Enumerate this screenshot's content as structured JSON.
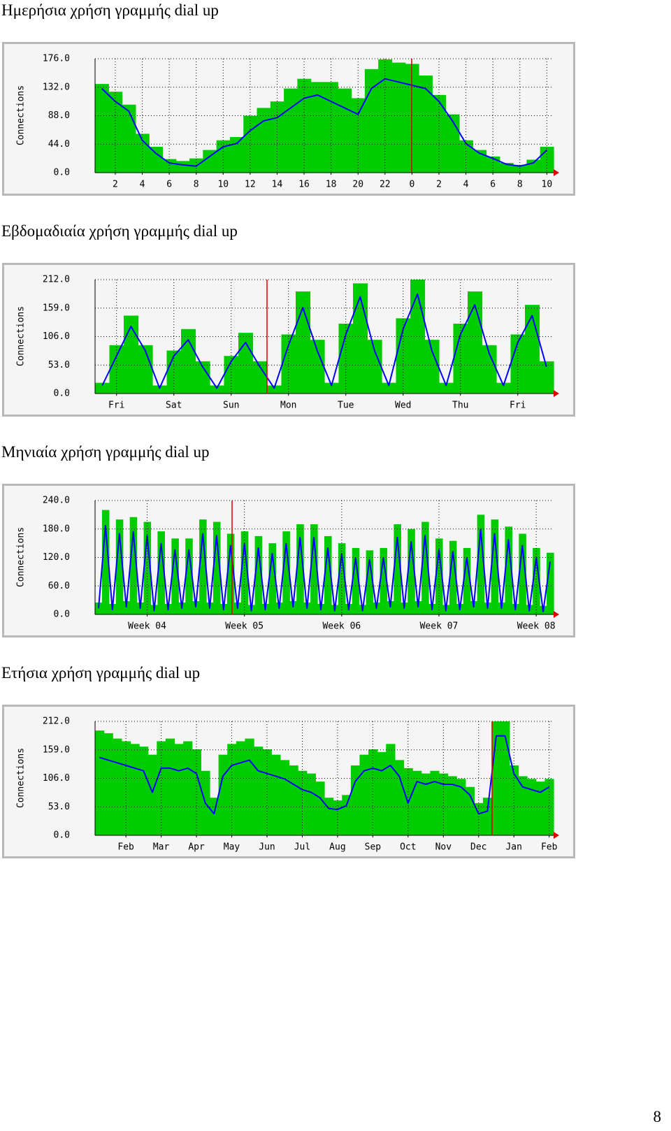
{
  "page_number": "8",
  "chart_data": [
    {
      "type": "area",
      "title": "Ημερήσια χρήση γραμμής dial up",
      "y_label": "Connections",
      "grid": true,
      "categories": [
        null,
        "2",
        null,
        "4",
        null,
        "6",
        null,
        "8",
        null,
        "10",
        null,
        "12",
        null,
        "14",
        null,
        "16",
        null,
        "18",
        null,
        "20",
        null,
        "22",
        null,
        "0",
        null,
        "2",
        null,
        "4",
        null,
        "6",
        null,
        "8",
        null,
        "10"
      ],
      "ylim": [
        0,
        176
      ],
      "yticks": [
        {
          "value": 0,
          "label": "0.0"
        },
        {
          "value": 44,
          "label": "44.0"
        },
        {
          "value": 88,
          "label": "88.0"
        },
        {
          "value": 132,
          "label": "132.0"
        },
        {
          "value": 176,
          "label": "176.0"
        }
      ],
      "series": [
        {
          "type": "bar",
          "color": "#00cc00",
          "values": [
            137,
            125,
            105,
            60,
            40,
            21,
            18,
            22,
            35,
            50,
            55,
            88,
            100,
            110,
            130,
            145,
            140,
            140,
            130,
            115,
            160,
            175,
            170,
            168,
            150,
            120,
            90,
            50,
            35,
            25,
            15,
            12,
            20,
            40
          ]
        },
        {
          "type": "line",
          "color": "#0000ff",
          "values": [
            130,
            110,
            95,
            50,
            30,
            15,
            12,
            10,
            25,
            40,
            45,
            65,
            80,
            85,
            100,
            115,
            120,
            110,
            100,
            90,
            130,
            145,
            140,
            135,
            130,
            110,
            80,
            45,
            30,
            22,
            13,
            10,
            15,
            35
          ]
        }
      ]
    },
    {
      "type": "area",
      "title": "Εβδομαδιαία χρήση γραμμής dial up",
      "y_label": "Connections",
      "grid": true,
      "categories": [
        null,
        "Fri",
        null,
        null,
        null,
        "Sat",
        null,
        null,
        null,
        "Sun",
        null,
        null,
        null,
        "Mon",
        null,
        null,
        null,
        "Tue",
        null,
        null,
        null,
        "Wed",
        null,
        null,
        null,
        "Thu",
        null,
        null,
        null,
        "Fri",
        null,
        null
      ],
      "ylim": [
        0,
        212
      ],
      "yticks": [
        {
          "value": 0,
          "label": "0.0"
        },
        {
          "value": 53,
          "label": "53.0"
        },
        {
          "value": 106,
          "label": "106.0"
        },
        {
          "value": 159,
          "label": "159.0"
        },
        {
          "value": 212,
          "label": "212.0"
        }
      ],
      "series": [
        {
          "type": "bar",
          "color": "#00cc00",
          "values": [
            20,
            90,
            145,
            90,
            15,
            80,
            120,
            60,
            15,
            70,
            113,
            60,
            15,
            110,
            190,
            100,
            20,
            130,
            205,
            100,
            20,
            140,
            212,
            100,
            20,
            130,
            190,
            90,
            20,
            110,
            165,
            60
          ]
        },
        {
          "type": "line",
          "color": "#0000ff",
          "values": [
            15,
            70,
            125,
            80,
            10,
            70,
            100,
            50,
            10,
            60,
            95,
            50,
            10,
            90,
            160,
            80,
            15,
            110,
            180,
            80,
            15,
            120,
            185,
            80,
            15,
            110,
            165,
            75,
            15,
            95,
            145,
            50
          ]
        }
      ]
    },
    {
      "type": "area",
      "title": "Μηνιαία χρήση γραμμής dial up",
      "y_label": "Connections",
      "grid": true,
      "categories": [
        null,
        null,
        null,
        null,
        null,
        null,
        null,
        "Week 04",
        null,
        null,
        null,
        null,
        null,
        null,
        null,
        null,
        null,
        null,
        null,
        null,
        null,
        "Week 05",
        null,
        null,
        null,
        null,
        null,
        null,
        null,
        null,
        null,
        null,
        null,
        null,
        null,
        "Week 06",
        null,
        null,
        null,
        null,
        null,
        null,
        null,
        null,
        null,
        null,
        null,
        null,
        null,
        "Week 07",
        null,
        null,
        null,
        null,
        null,
        null,
        null,
        null,
        null,
        null,
        null,
        null,
        null,
        "Week 08",
        null,
        null
      ],
      "ylim": [
        0,
        240
      ],
      "yticks": [
        {
          "value": 0,
          "label": "0.0"
        },
        {
          "value": 60,
          "label": "60.0"
        },
        {
          "value": 120,
          "label": "120.0"
        },
        {
          "value": 180,
          "label": "180.0"
        },
        {
          "value": 240,
          "label": "240.0"
        }
      ],
      "series": [
        {
          "type": "bar",
          "color": "#00cc00",
          "values": [
            25,
            220,
            22,
            200,
            28,
            205,
            25,
            195,
            20,
            175,
            22,
            160,
            25,
            160,
            28,
            200,
            25,
            195,
            22,
            170,
            25,
            175,
            20,
            165,
            22,
            150,
            25,
            175,
            28,
            190,
            25,
            190,
            22,
            165,
            20,
            150,
            22,
            140,
            20,
            135,
            25,
            140,
            28,
            190,
            25,
            180,
            28,
            195,
            22,
            160,
            20,
            155,
            22,
            140,
            28,
            210,
            25,
            200,
            25,
            185,
            22,
            170,
            20,
            140,
            18,
            130
          ]
        },
        {
          "type": "line",
          "color": "#0000ff",
          "values": [
            13,
            187,
            10,
            170,
            16,
            174,
            13,
            166,
            8,
            149,
            10,
            136,
            13,
            136,
            16,
            170,
            13,
            166,
            10,
            145,
            13,
            149,
            8,
            140,
            10,
            128,
            13,
            149,
            16,
            162,
            13,
            162,
            10,
            140,
            8,
            128,
            10,
            119,
            8,
            115,
            13,
            119,
            16,
            162,
            13,
            153,
            16,
            166,
            10,
            136,
            8,
            132,
            10,
            119,
            16,
            179,
            13,
            170,
            13,
            157,
            10,
            145,
            8,
            119,
            6,
            111
          ]
        }
      ]
    },
    {
      "type": "area",
      "title": "Ετήσια χρήση γραμμής dial up",
      "y_label": "Connections",
      "grid": true,
      "categories": [
        null,
        null,
        null,
        "Feb",
        null,
        null,
        null,
        "Mar",
        null,
        null,
        null,
        "Apr",
        null,
        null,
        null,
        "May",
        null,
        null,
        null,
        "Jun",
        null,
        null,
        null,
        "Jul",
        null,
        null,
        null,
        "Aug",
        null,
        null,
        null,
        "Sep",
        null,
        null,
        null,
        "Oct",
        null,
        null,
        null,
        "Nov",
        null,
        null,
        null,
        "Dec",
        null,
        null,
        null,
        "Jan",
        null,
        null,
        null,
        "Feb"
      ],
      "ylim": [
        0,
        212
      ],
      "yticks": [
        {
          "value": 0,
          "label": "0.0"
        },
        {
          "value": 53,
          "label": "53.0"
        },
        {
          "value": 106,
          "label": "106.0"
        },
        {
          "value": 159,
          "label": "159.0"
        },
        {
          "value": 212,
          "label": "212.0"
        }
      ],
      "series": [
        {
          "type": "bar",
          "color": "#00cc00",
          "values": [
            195,
            190,
            180,
            175,
            170,
            165,
            150,
            175,
            180,
            170,
            175,
            160,
            120,
            70,
            150,
            170,
            175,
            180,
            165,
            160,
            150,
            140,
            130,
            120,
            115,
            100,
            70,
            65,
            75,
            130,
            150,
            160,
            155,
            170,
            140,
            125,
            120,
            115,
            120,
            115,
            110,
            105,
            90,
            60,
            70,
            212,
            212,
            130,
            110,
            105,
            100,
            105
          ]
        },
        {
          "type": "line",
          "color": "#0000ff",
          "values": [
            145,
            140,
            135,
            130,
            125,
            120,
            80,
            125,
            125,
            120,
            125,
            115,
            60,
            40,
            110,
            130,
            135,
            140,
            120,
            115,
            110,
            105,
            95,
            85,
            80,
            70,
            50,
            48,
            55,
            100,
            120,
            125,
            120,
            130,
            110,
            60,
            100,
            95,
            100,
            95,
            95,
            90,
            75,
            40,
            45,
            185,
            185,
            115,
            90,
            85,
            80,
            90
          ]
        }
      ]
    }
  ]
}
